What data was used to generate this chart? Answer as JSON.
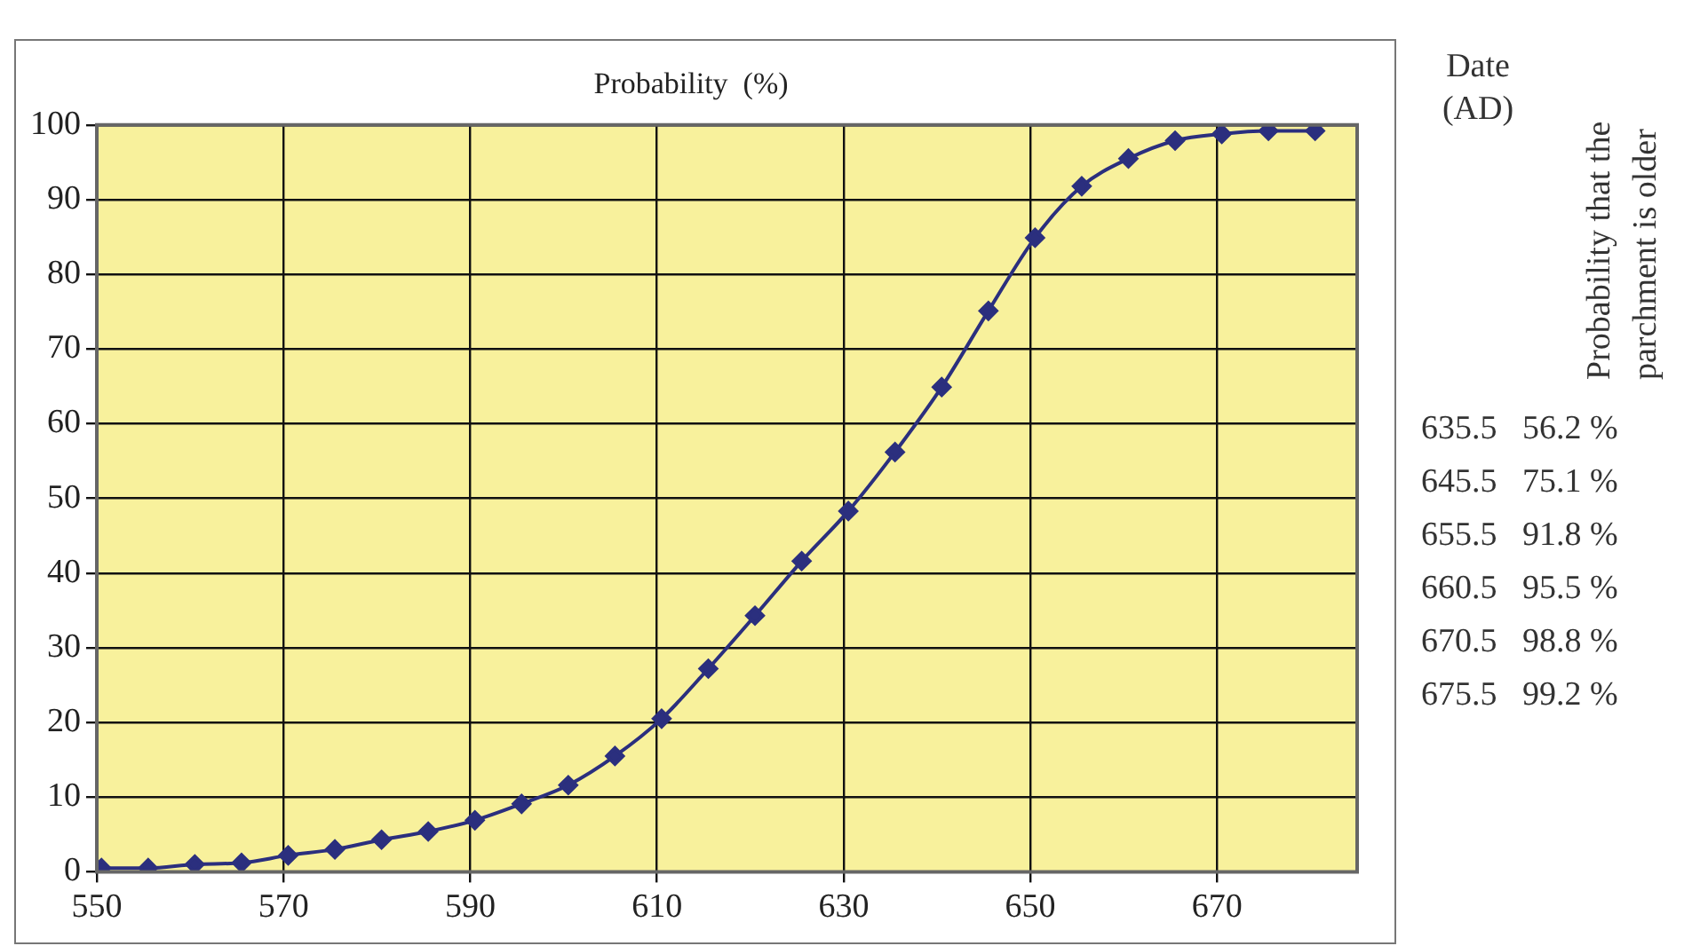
{
  "chart_data": {
    "type": "line",
    "title": "Probability  (%)",
    "x": [
      550.5,
      555.5,
      560.5,
      565.5,
      570.5,
      575.5,
      580.5,
      585.5,
      590.5,
      595.5,
      600.5,
      605.5,
      610.5,
      615.5,
      620.5,
      625.5,
      630.5,
      635.5,
      640.5,
      645.5,
      650.5,
      655.5,
      660.5,
      665.5,
      670.5,
      675.5,
      680.5
    ],
    "series": [
      {
        "color": "#2b2f7e",
        "values": [
          0.5,
          0.5,
          1.0,
          1.2,
          2.2,
          3.0,
          4.3,
          5.4,
          6.9,
          9.1,
          11.6,
          15.5,
          20.5,
          27.2,
          34.3,
          41.6,
          48.3,
          56.2,
          64.9,
          75.1,
          84.9,
          91.8,
          95.5,
          97.9,
          98.8,
          99.2,
          99.2
        ]
      }
    ],
    "xlim": [
      550,
      685
    ],
    "xticks": [
      550,
      570,
      590,
      610,
      630,
      650,
      670
    ],
    "ylim": [
      0,
      100
    ],
    "yticks": [
      0,
      10,
      20,
      30,
      40,
      50,
      60,
      70,
      80,
      90,
      100
    ],
    "grid": true,
    "legend": false,
    "marker": "diamond",
    "line_style": "solid",
    "annotations": [
      "Date (AD)",
      "Probability that the parchment is older",
      "635.5   56.2 %",
      "645.5   75.1 %",
      "655.5   91.8 %",
      "660.5   95.5 %",
      "670.5   98.8 %",
      "675.5   99.2 %"
    ]
  }
}
